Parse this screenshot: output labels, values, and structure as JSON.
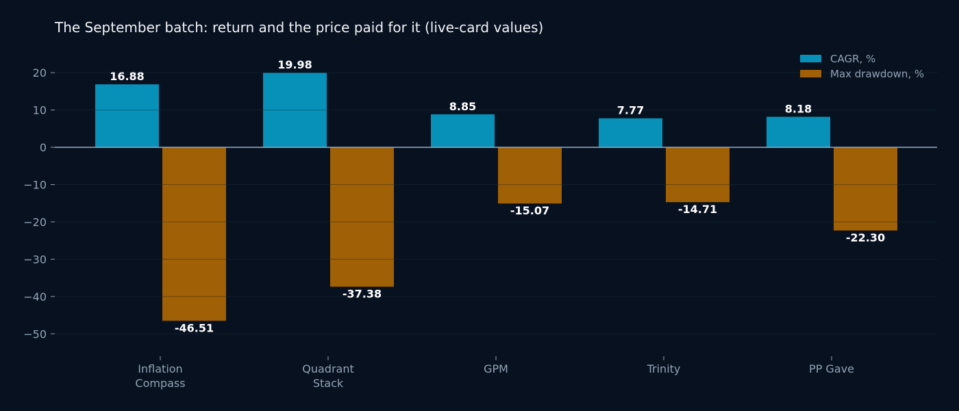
{
  "chart_data": {
    "type": "bar",
    "title": "The September batch: return and the price paid for it (live-card values)",
    "xlabel": "",
    "ylabel": "",
    "categories": [
      "Inflation\nCompass",
      "Quadrant\nStack",
      "GPM",
      "Trinity",
      "PP Gave"
    ],
    "series": [
      {
        "name": "CAGR, %",
        "color": "#0891b8",
        "values": [
          16.88,
          19.98,
          8.85,
          7.77,
          8.18
        ],
        "labels": [
          "16.88",
          "19.98",
          "8.85",
          "7.77",
          "8.18"
        ]
      },
      {
        "name": "Max drawdown, %",
        "color": "#a06006",
        "values": [
          -46.51,
          -37.38,
          -15.07,
          -14.71,
          -22.3
        ],
        "labels": [
          "-46.51",
          "-37.38",
          "-15.07",
          "-14.71",
          "-22.30"
        ]
      }
    ],
    "ylim": [
      -56,
      27
    ],
    "yticks": [
      20,
      10,
      0,
      -10,
      -20,
      -30,
      -40,
      -50
    ],
    "ytick_labels": [
      "20",
      "10",
      "0",
      "−10",
      "−20",
      "−30",
      "−40",
      "−50"
    ],
    "grid": "horizontal",
    "legend_position": "top-right",
    "colors": {
      "background": "#07111f",
      "grid": "#1a2535",
      "zero_line": "#8da4bc",
      "tick_text": "#93a3b5",
      "title_text": "#f2f5f8",
      "label_text": "#ffffff"
    }
  }
}
